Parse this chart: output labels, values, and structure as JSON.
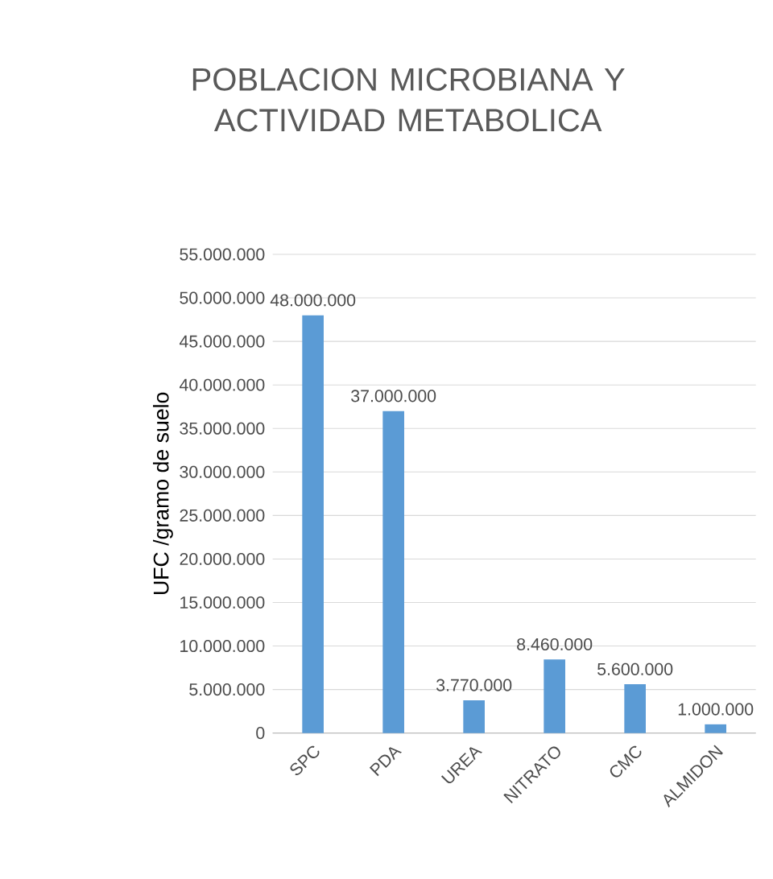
{
  "chart_data": {
    "type": "bar",
    "title": "POBLACION MICROBIANA Y ACTIVIDAD METABOLICA",
    "ylabel": "UFC /gramo de suelo",
    "categories": [
      "SPC",
      "PDA",
      "UREA",
      "NITRATO",
      "CMC",
      "ALMIDON"
    ],
    "values": [
      48000000,
      37000000,
      3770000,
      8460000,
      5600000,
      1000000
    ],
    "value_labels": [
      "48.000.000",
      "37.000.000",
      "3.770.000",
      "8.460.000",
      "5.600.000",
      "1.000.000"
    ],
    "color": "#5b9bd5",
    "ylim": [
      0,
      55000000
    ],
    "yticks": [
      0,
      {
        "value": 5000000,
        "label": "5.000.000"
      },
      {
        "value": 10000000,
        "label": "10.000.000"
      },
      {
        "value": 15000000,
        "label": "15.000.000"
      },
      {
        "value": 20000000,
        "label": "20.000.000"
      },
      {
        "value": 25000000,
        "label": "25.000.000"
      },
      {
        "value": 30000000,
        "label": "30.000.000"
      },
      {
        "value": 35000000,
        "label": "35.000.000"
      },
      {
        "value": 40000000,
        "label": "40.000.000"
      },
      {
        "value": 45000000,
        "label": "45.000.000"
      },
      {
        "value": 50000000,
        "label": "50.000.000"
      },
      {
        "value": 55000000,
        "label": "55.000.000"
      }
    ],
    "grid": "y"
  }
}
